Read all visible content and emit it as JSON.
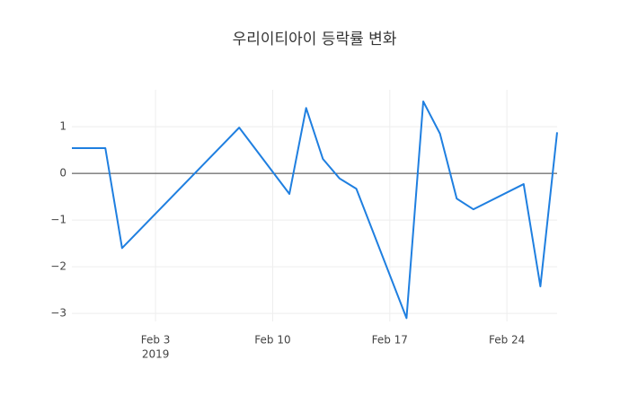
{
  "chart_data": {
    "type": "line",
    "title": "우리이티아이 등락률 변화",
    "x": [
      "2019-01-29",
      "2019-01-31",
      "2019-02-01",
      "2019-02-08",
      "2019-02-11",
      "2019-02-12",
      "2019-02-13",
      "2019-02-14",
      "2019-02-15",
      "2019-02-18",
      "2019-02-19",
      "2019-02-20",
      "2019-02-21",
      "2019-02-22",
      "2019-02-25",
      "2019-02-26",
      "2019-02-27"
    ],
    "values": [
      0.54,
      0.54,
      -1.6,
      0.98,
      -0.44,
      1.4,
      0.31,
      -0.11,
      -0.33,
      -3.1,
      1.54,
      0.85,
      -0.54,
      -0.77,
      -0.23,
      -2.42,
      0.88
    ],
    "color": "#1f7fe0",
    "xlim": [
      "2019-01-29",
      "2019-02-27"
    ],
    "xticks": [
      {
        "value": "2019-02-03",
        "label": "Feb 3"
      },
      {
        "value": "2019-02-10",
        "label": "Feb 10"
      },
      {
        "value": "2019-02-17",
        "label": "Feb 17"
      },
      {
        "value": "2019-02-24",
        "label": "Feb 24"
      }
    ],
    "x_year_label": "2019",
    "ylim": [
      -3.17,
      1.79
    ],
    "yticks": [
      {
        "value": -3,
        "label": "−3"
      },
      {
        "value": -2,
        "label": "−2"
      },
      {
        "value": -1,
        "label": "−1"
      },
      0,
      1
    ],
    "grid": true,
    "zeroline": true
  }
}
